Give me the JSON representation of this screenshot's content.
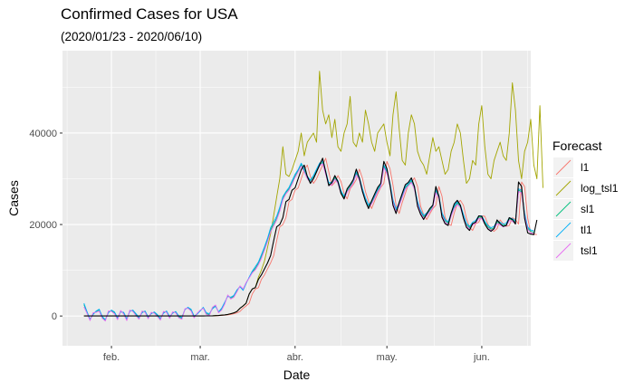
{
  "chart_data": {
    "type": "line",
    "title": "Confirmed Cases for USA",
    "subtitle": "(2020/01/23 - 2020/06/10)",
    "xlabel": "Date",
    "ylabel": "Cases",
    "x_ticks": [
      "feb.",
      "mar.",
      "abr.",
      "may.",
      "jun."
    ],
    "x_tick_dates": [
      "2020-02-01",
      "2020-03-01",
      "2020-04-01",
      "2020-05-01",
      "2020-06-01"
    ],
    "y_ticks": [
      0,
      20000,
      40000
    ],
    "y_tick_labels": [
      "0",
      "20000",
      "40000"
    ],
    "ylim": [
      -6500,
      58000
    ],
    "xlim": [
      "2020-01-16",
      "2020-06-17"
    ],
    "x_start": "2020-01-23",
    "grid": true,
    "legend_title": "Forecast",
    "legend_position": "right",
    "actual": {
      "color": "#000000",
      "values": [
        1,
        0,
        1,
        0,
        3,
        0,
        0,
        1,
        0,
        2,
        1,
        0,
        3,
        0,
        0,
        0,
        0,
        0,
        0,
        1,
        0,
        0,
        0,
        0,
        0,
        0,
        0,
        0,
        0,
        1,
        0,
        0,
        0,
        0,
        5,
        3,
        2,
        0,
        3,
        5,
        20,
        30,
        50,
        80,
        110,
        190,
        240,
        350,
        510,
        690,
        1000,
        1700,
        2200,
        2800,
        4800,
        5900,
        6200,
        8000,
        9000,
        10300,
        11600,
        13200,
        16500,
        19500,
        20000,
        21500,
        25000,
        25500,
        27500,
        28000,
        30000,
        32000,
        33000,
        30500,
        29000,
        30000,
        31500,
        33000,
        34500,
        31500,
        28500,
        29200,
        30700,
        29400,
        26800,
        25600,
        27800,
        28700,
        29800,
        32100,
        30100,
        27200,
        25100,
        23500,
        25200,
        26700,
        28100,
        29000,
        33800,
        32200,
        28600,
        24200,
        22400,
        24800,
        26800,
        28700,
        29200,
        30200,
        28300,
        24000,
        22200,
        21100,
        22300,
        23500,
        24200,
        28300,
        26200,
        21600,
        20200,
        19800,
        22500,
        24500,
        25300,
        24200,
        21400,
        19400,
        18700,
        20200,
        20500,
        21900,
        21800,
        20100,
        19000,
        18500,
        19100,
        21000,
        20200,
        19600,
        19800,
        21500,
        21100,
        20100,
        29300,
        28300,
        21400,
        18200,
        17900,
        17800,
        21000
      ]
    },
    "series": [
      {
        "name": "l1",
        "color": "#F8766D",
        "values": [
          0,
          1,
          0,
          1,
          0,
          3,
          0,
          0,
          1,
          0,
          2,
          1,
          0,
          3,
          0,
          0,
          0,
          0,
          0,
          0,
          1,
          0,
          0,
          0,
          0,
          0,
          0,
          0,
          0,
          0,
          1,
          0,
          0,
          0,
          0,
          5,
          3,
          2,
          0,
          3,
          5,
          20,
          30,
          50,
          80,
          110,
          190,
          240,
          350,
          510,
          690,
          1000,
          1700,
          2200,
          2800,
          4800,
          5900,
          6200,
          8000,
          9000,
          10300,
          11600,
          13200,
          16500,
          19500,
          20000,
          21500,
          25000,
          25500,
          27500,
          28000,
          30000,
          32000,
          33000,
          30500,
          29000,
          30000,
          31500,
          33000,
          34500,
          31500,
          28500,
          29200,
          30700,
          29400,
          26800,
          25600,
          27800,
          28700,
          29800,
          32100,
          30100,
          27200,
          25100,
          23500,
          25200,
          26700,
          28100,
          29000,
          33800,
          32200,
          28600,
          24200,
          22400,
          24800,
          26800,
          28700,
          29200,
          30200,
          28300,
          24000,
          22200,
          21100,
          22300,
          23500,
          24200,
          28300,
          26200,
          21600,
          20200,
          19800,
          22500,
          24500,
          25300,
          24200,
          21400,
          19400,
          18700,
          20200,
          20500,
          21900,
          21800,
          20100,
          19000,
          18500,
          19100,
          21000,
          20200,
          19600,
          19800,
          21500,
          21100,
          20100,
          29300,
          28300,
          21400,
          18200,
          17900,
          17800
        ]
      },
      {
        "name": "log_tsl1",
        "color": "#A3A500",
        "values": [
          1,
          0,
          1,
          0,
          3,
          0,
          0,
          1,
          0,
          2,
          1,
          0,
          3,
          0,
          0,
          0,
          0,
          0,
          0,
          1,
          0,
          0,
          0,
          0,
          0,
          0,
          0,
          0,
          0,
          1,
          0,
          0,
          0,
          0,
          5,
          3,
          2,
          0,
          3,
          5,
          20,
          30,
          50,
          80,
          110,
          190,
          240,
          350,
          510,
          690,
          1000,
          1700,
          2200,
          2800,
          4800,
          5900,
          6200,
          8500,
          10000,
          12000,
          15000,
          18000,
          22000,
          26000,
          30000,
          37000,
          31000,
          30500,
          32000,
          34000,
          36000,
          40000,
          35000,
          38000,
          39000,
          40000,
          38000,
          53500,
          45000,
          42000,
          44000,
          39000,
          43000,
          37000,
          36000,
          40000,
          42000,
          48000,
          38000,
          37000,
          40000,
          38000,
          45000,
          42000,
          38000,
          36000,
          40000,
          41000,
          42000,
          38000,
          35000,
          44000,
          49000,
          41000,
          34000,
          33000,
          40000,
          44000,
          42000,
          36000,
          34000,
          33000,
          31000,
          35000,
          39000,
          36000,
          37000,
          34000,
          31000,
          32000,
          36000,
          38000,
          42000,
          40000,
          34000,
          29000,
          30000,
          34000,
          33000,
          42000,
          46000,
          37000,
          31000,
          30000,
          34000,
          36000,
          38000,
          35000,
          34000,
          40000,
          51000,
          45000,
          34000,
          30000,
          36000,
          38000,
          43000,
          33000,
          30000,
          46000,
          28000
        ]
      },
      {
        "name": "sl1",
        "color": "#00BF7D",
        "values": [
          2500,
          800,
          -800,
          500,
          1000,
          1300,
          -300,
          -900,
          900,
          1200,
          700,
          -600,
          1000,
          600,
          -800,
          1100,
          1200,
          300,
          -500,
          900,
          1000,
          -400,
          600,
          800,
          100,
          -700,
          800,
          1000,
          -300,
          700,
          900,
          -200,
          -500,
          1500,
          1800,
          1300,
          -200,
          500,
          1200,
          1800,
          500,
          300,
          1800,
          2300,
          800,
          1500,
          2800,
          4500,
          3900,
          4300,
          5500,
          6500,
          5800,
          7200,
          8400,
          9600,
          10400,
          11500,
          13000,
          14800,
          16700,
          18800,
          20100,
          21300,
          23300,
          25800,
          27000,
          27800,
          29100,
          30600,
          31800,
          33100,
          31800,
          30300,
          29500,
          30400,
          31800,
          33100,
          33600,
          31300,
          28800,
          29000,
          30200,
          29300,
          27100,
          25900,
          27400,
          28300,
          29400,
          31200,
          30000,
          27500,
          25500,
          24000,
          24800,
          26100,
          27500,
          28500,
          32700,
          31500,
          28800,
          25100,
          23100,
          24400,
          26200,
          28000,
          28700,
          29500,
          28000,
          24800,
          22800,
          21700,
          22200,
          23100,
          24000,
          27300,
          26000,
          22300,
          20800,
          20300,
          22100,
          23800,
          24700,
          24000,
          21900,
          20000,
          19300,
          20200,
          20600,
          21600,
          21600,
          20400,
          19500,
          19000,
          19300,
          20500,
          20200,
          19800,
          20000,
          21200,
          21000,
          20500,
          27500,
          27200,
          22200,
          19200,
          18500,
          18300
        ]
      },
      {
        "name": "tl1",
        "color": "#00B0F6",
        "values": [
          2800,
          1000,
          -700,
          300,
          1100,
          1500,
          -100,
          -800,
          700,
          1300,
          900,
          -400,
          900,
          800,
          -600,
          1000,
          1300,
          500,
          -300,
          700,
          1100,
          -200,
          500,
          900,
          300,
          -500,
          600,
          1100,
          -100,
          600,
          1000,
          0,
          -300,
          1400,
          1900,
          1500,
          0,
          400,
          1100,
          1900,
          700,
          500,
          1600,
          2100,
          900,
          1700,
          3000,
          4300,
          4100,
          4500,
          5700,
          6400,
          5600,
          7100,
          8500,
          9800,
          10800,
          11800,
          13400,
          15100,
          17000,
          19300,
          20600,
          21800,
          23800,
          26100,
          27200,
          28100,
          29500,
          31000,
          32000,
          33400,
          32200,
          30600,
          29700,
          30700,
          32100,
          33400,
          33900,
          31700,
          29100,
          29300,
          30500,
          29600,
          27400,
          26200,
          27700,
          28600,
          29700,
          31500,
          30300,
          27800,
          25800,
          24300,
          25100,
          26400,
          27800,
          28800,
          33000,
          31800,
          29100,
          25400,
          23400,
          24700,
          26500,
          28300,
          29000,
          29800,
          28300,
          25100,
          23100,
          22000,
          22500,
          23400,
          24300,
          27600,
          26300,
          22600,
          21100,
          20600,
          22400,
          24100,
          25000,
          24300,
          22200,
          20300,
          19600,
          20500,
          20900,
          21900,
          21900,
          20700,
          19800,
          19300,
          19600,
          20800,
          20500,
          20100,
          20300,
          21500,
          21300,
          20800,
          27800,
          27500,
          22500,
          19500,
          18800,
          18600
        ]
      },
      {
        "name": "tsl1",
        "color": "#E76BF3",
        "values": [
          2000,
          600,
          -1000,
          700,
          800,
          1100,
          -500,
          -1100,
          1100,
          1000,
          500,
          -800,
          1200,
          400,
          -1000,
          1300,
          1000,
          100,
          -700,
          1100,
          800,
          -600,
          800,
          600,
          -100,
          -900,
          1000,
          800,
          -500,
          900,
          700,
          -400,
          -700,
          1600,
          1700,
          1100,
          -400,
          600,
          1300,
          1700,
          300,
          100,
          1900,
          2400,
          700,
          1300,
          2600,
          4600,
          3700,
          4100,
          5300,
          6600,
          5900,
          7300,
          8300,
          9400,
          10100,
          11200,
          12600,
          14400,
          16300,
          18400,
          19700,
          21000,
          22900,
          25400,
          26700,
          27500,
          28800,
          30300,
          31500,
          32800,
          31500,
          30000,
          29200,
          30100,
          31500,
          32800,
          33300,
          31000,
          28500,
          28700,
          29900,
          29000,
          26800,
          25600,
          27100,
          28000,
          29100,
          30900,
          29700,
          27200,
          25200,
          23700,
          24500,
          25800,
          27200,
          28200,
          32400,
          31200,
          28500,
          24800,
          22800,
          24100,
          25900,
          27700,
          28400,
          29200,
          27700,
          24500,
          22500,
          21400,
          21900,
          22800,
          23700,
          27000,
          25700,
          22000,
          20500,
          20000,
          21800,
          23500,
          24400,
          23700,
          21600,
          19700,
          19000,
          19900,
          20300,
          21300,
          21300,
          20100,
          19200,
          18700,
          19000,
          20200,
          19900,
          19500,
          19700,
          20900,
          20700,
          20200,
          27200,
          26900,
          21900,
          18900,
          18200,
          18000
        ]
      }
    ]
  }
}
